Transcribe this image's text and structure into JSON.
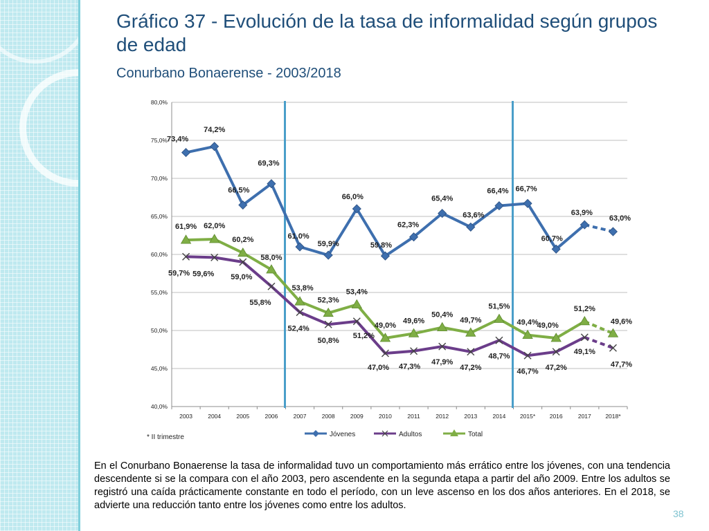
{
  "title": "Gráfico 37 - Evolución de la tasa de informalidad según grupos de edad",
  "subtitle": "Conurbano Bonaerense - 2003/2018",
  "footnote": "* II trimestre",
  "description": "En el Conurbano Bonaerense la tasa de informalidad tuvo un comportamiento más errático entre los jóvenes, con una tendencia descendente si se la compara con el año 2003, pero ascendente en la segunda etapa a partir del año 2009. Entre los adultos se registró una caída prácticamente constante en todo el período, con un leve ascenso en los dos años anteriores.  En el 2018, se advierte una reducción tanto entre los jóvenes como entre los adultos.",
  "page_number": "38",
  "colors": {
    "jovenes": "#3e6fae",
    "adultos": "#6b3d8a",
    "total": "#7fae45",
    "vline": "#4a9ec9",
    "grid": "#bfbfbf",
    "title": "#1f4e79"
  },
  "chart_data": {
    "type": "line",
    "categories": [
      "2003",
      "2004",
      "2005",
      "2006",
      "2007",
      "2008",
      "2009",
      "2010",
      "2011",
      "2012",
      "2013",
      "2014",
      "2015*",
      "2016",
      "2017",
      "2018*"
    ],
    "ylim": [
      40,
      80
    ],
    "yticks": [
      "40,0%",
      "45,0%",
      "50,0%",
      "55,0%",
      "60,0%",
      "65,0%",
      "70,0%",
      "75,0%",
      "80,0%"
    ],
    "vertical_lines_at": [
      "2007",
      "2015*"
    ],
    "dashed_last_segment": true,
    "series": [
      {
        "name": "Jóvenes",
        "marker": "diamond",
        "values": [
          73.4,
          74.2,
          66.5,
          69.3,
          61.0,
          59.9,
          66.0,
          59.8,
          62.3,
          65.4,
          63.6,
          66.4,
          66.7,
          60.7,
          63.9,
          63.0
        ],
        "labels": [
          "73,4%",
          "74,2%",
          "66,5%",
          "69,3%",
          "61,0%",
          "59,9%",
          "66,0%",
          "59,8%",
          "62,3%",
          "65,4%",
          "63,6%",
          "66,4%",
          "66,7%",
          "60,7%",
          "63,9%",
          "63,0%"
        ]
      },
      {
        "name": "Adultos",
        "marker": "x",
        "values": [
          59.7,
          59.6,
          59.0,
          55.8,
          52.4,
          50.8,
          51.2,
          47.0,
          47.3,
          47.9,
          47.2,
          48.7,
          46.7,
          47.2,
          49.1,
          47.7
        ],
        "labels": [
          "59,7%",
          "59,6%",
          "59,0%",
          "55,8%",
          "52,4%",
          "50,8%",
          "51,2%",
          "47,0%",
          "47,3%",
          "47,9%",
          "47,2%",
          "48,7%",
          "46,7%",
          "47,2%",
          "49,1%",
          "47,7%"
        ]
      },
      {
        "name": "Total",
        "marker": "triangle",
        "values": [
          61.9,
          62.0,
          60.2,
          58.0,
          53.8,
          52.3,
          53.4,
          49.0,
          49.6,
          50.4,
          49.7,
          51.5,
          49.4,
          49.0,
          51.2,
          49.6
        ],
        "labels": [
          "61,9%",
          "62,0%",
          "60,2%",
          "58,0%",
          "53,8%",
          "52,3%",
          "53,4%",
          "49,0%",
          "49,6%",
          "50,4%",
          "49,7%",
          "51,5%",
          "49,4%",
          "49,0%",
          "51,2%",
          "49,6%"
        ]
      }
    ]
  }
}
